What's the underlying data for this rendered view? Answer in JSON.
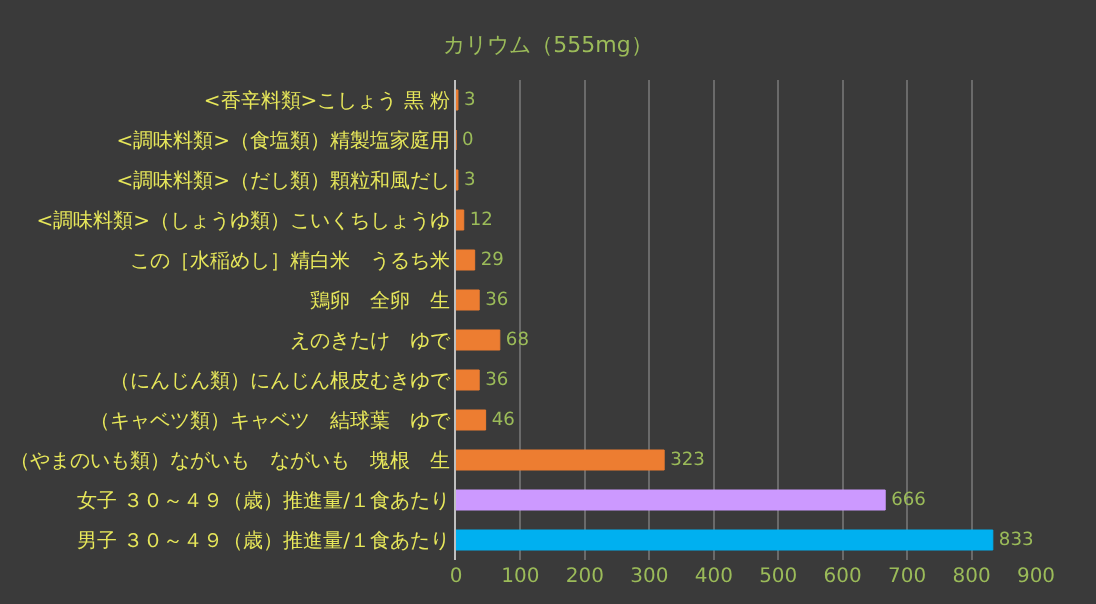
{
  "chart_data": {
    "type": "bar",
    "orientation": "horizontal",
    "title": "カリウム（555mg）",
    "categories": [
      "<香辛料類>こしょう 黒 粉",
      "<調味料類>（食塩類）精製塩家庭用",
      "<調味料類>（だし類）顆粒和風だし",
      "<調味料類>（しょうゆ類）こいくちしょうゆ",
      "この［水稲めし］精白米　うるち米",
      "鶏卵　全卵　生",
      "えのきたけ　ゆで",
      "（にんじん類）にんじん根皮むきゆで",
      "（キャベツ類）キャベツ　結球葉　ゆで",
      "（やまのいも類）ながいも　ながいも　塊根　生",
      "女子 ３０～４９（歳）推進量/１食あたり",
      "男子 ３０～４９（歳）推進量/１食あたり"
    ],
    "values": [
      3,
      0,
      3,
      12,
      29,
      36,
      68,
      36,
      46,
      323,
      666,
      833
    ],
    "colors": [
      "#ed7d31",
      "#ed7d31",
      "#ed7d31",
      "#ed7d31",
      "#ed7d31",
      "#ed7d31",
      "#ed7d31",
      "#ed7d31",
      "#ed7d31",
      "#ed7d31",
      "#cc99ff",
      "#00b0f0"
    ],
    "data_labels": true,
    "xlim": [
      0,
      900
    ],
    "xticks": [
      0,
      100,
      200,
      300,
      400,
      500,
      600,
      700,
      800,
      900
    ],
    "grid": "x",
    "legend": false
  }
}
